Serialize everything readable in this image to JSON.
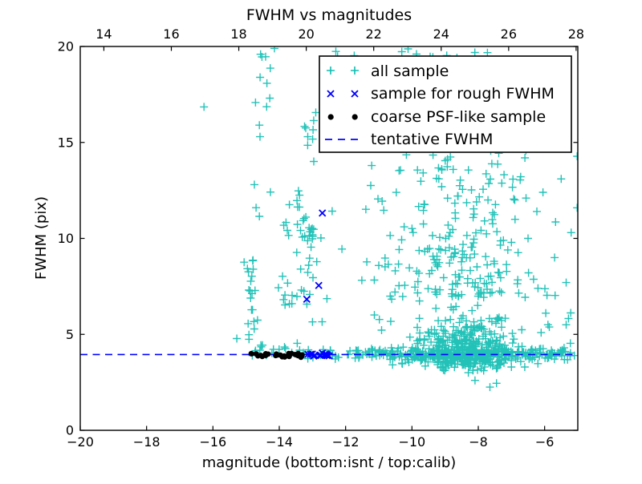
{
  "chart_data": {
    "type": "scatter",
    "title": "FWHM vs magnitudes",
    "xlabel": "magnitude (bottom:isnt / top:calib)",
    "ylabel": "FWHM (pix)",
    "xlim": [
      -20,
      -5
    ],
    "xlim_top": [
      13.3,
      28.05
    ],
    "ylim": [
      0,
      20
    ],
    "xticks_bottom": [
      -20,
      -18,
      -16,
      -14,
      -12,
      -10,
      -8,
      -6
    ],
    "xticks_top": [
      14,
      16,
      18,
      20,
      22,
      24,
      26,
      28
    ],
    "yticks": [
      0,
      5,
      10,
      15,
      20
    ],
    "grid": false,
    "legend_position": "upper right",
    "tentative_fwhm": 3.95,
    "colors": {
      "all_sample": "#0fbdb2",
      "rough_fwhm": "#0000ff",
      "coarse_psf": "#000000",
      "tentative_line": "#0000ff",
      "axis": "#000000"
    },
    "series": [
      {
        "name": "all sample",
        "marker": "plus",
        "color": "#0fbdb2",
        "clusters": [
          {
            "n": 150,
            "x": [
              "u",
              -12.4,
              -5.05
            ],
            "y": [
              "g",
              3.98,
              0.16
            ]
          },
          {
            "n": 90,
            "x": [
              "g",
              -8.6,
              1.1
            ],
            "y": [
              "g",
              3.9,
              0.22
            ]
          },
          {
            "n": 12,
            "x": [
              "u",
              -13.2,
              -12.4
            ],
            "y": [
              "g",
              4.05,
              0.12
            ]
          },
          {
            "n": 18,
            "x": [
              "u",
              -15.05,
              -13.2
            ],
            "y": [
              "g",
              4.15,
              0.18
            ]
          },
          {
            "n": 380,
            "x": [
              "g",
              -8.45,
              0.8
            ],
            "y": [
              "h",
              3.45,
              1.15
            ]
          },
          {
            "n": 30,
            "x": [
              "g",
              -8.4,
              0.9
            ],
            "y": [
              "u",
              3.1,
              3.5
            ]
          },
          {
            "n": 120,
            "x": [
              "g",
              -8.55,
              1.05
            ],
            "y": [
              "u",
              6.8,
              10.2
            ]
          },
          {
            "n": 85,
            "x": [
              "g",
              -8.6,
              1.25
            ],
            "y": [
              "u",
              10.2,
              14.4
            ]
          },
          {
            "n": 26,
            "x": [
              "g",
              -8.7,
              1.4
            ],
            "y": [
              "u",
              14.4,
              17.8
            ]
          },
          {
            "n": 12,
            "x": [
              "u",
              -12.7,
              -7.7
            ],
            "y": [
              "u",
              19.4,
              19.95
            ]
          },
          {
            "n": 8,
            "x": [
              "g",
              -14.82,
              0.08
            ],
            "y": [
              "u",
              4.3,
              6.4
            ]
          },
          {
            "n": 10,
            "x": [
              "g",
              -14.85,
              0.07
            ],
            "y": [
              "u",
              6.8,
              9.0
            ]
          },
          {
            "n": 9,
            "x": [
              "g",
              -14.45,
              0.15
            ],
            "y": [
              "u",
              16.6,
              19.9
            ]
          },
          {
            "n": 48,
            "x": [
              "g",
              -13.35,
              0.4
            ],
            "y": [
              "u",
              5.2,
              12.6
            ]
          },
          {
            "n": 8,
            "x": [
              "g",
              -13.05,
              0.07
            ],
            "y": [
              "g",
              10.3,
              0.22
            ]
          },
          {
            "n": 7,
            "x": [
              "g",
              -13.1,
              0.15
            ],
            "y": [
              "u",
              13.6,
              16.6
            ]
          },
          {
            "n": 12,
            "x": [
              "u",
              -11.6,
              -10.2
            ],
            "y": [
              "u",
              5.0,
              9.0
            ]
          },
          {
            "n": 10,
            "x": [
              "u",
              -6.4,
              -5.1
            ],
            "y": [
              "u",
              4.5,
              8.0
            ]
          }
        ],
        "points": [
          [
            -16.27,
            16.85
          ],
          [
            -15.28,
            4.78
          ],
          [
            -15.06,
            8.76
          ],
          [
            -14.93,
            8.26
          ],
          [
            -14.75,
            12.8
          ],
          [
            -14.7,
            11.6
          ],
          [
            -14.6,
            11.15
          ],
          [
            -14.6,
            15.9
          ],
          [
            -14.58,
            15.3
          ],
          [
            -14.27,
            18.87
          ],
          [
            -13.14,
            15.3
          ],
          [
            -12.9,
            16.56
          ],
          [
            -8.1,
            2.6
          ],
          [
            -7.65,
            2.25
          ],
          [
            -7.45,
            2.45
          ],
          [
            -9.05,
            3.15
          ],
          [
            -8.3,
            3.0
          ],
          [
            -9.6,
            3.35
          ],
          [
            -10.3,
            3.5
          ],
          [
            -7.0,
            3.3
          ],
          [
            -5.5,
            13.1
          ],
          [
            -5.2,
            10.3
          ],
          [
            -5.7,
            9.0
          ],
          [
            -5.35,
            7.7
          ],
          [
            -6.2,
            7.4
          ],
          [
            -5.35,
            5.5
          ],
          [
            -5.9,
            5.5
          ],
          [
            -6.05,
            12.4
          ],
          [
            -6.9,
            12.0
          ],
          [
            -6.5,
            10.0
          ]
        ]
      },
      {
        "name": "sample for rough FWHM",
        "marker": "x",
        "color": "#0000ff",
        "clusters": [
          {
            "n": 15,
            "x": [
              "u",
              -13.15,
              -12.42
            ],
            "y": [
              "g",
              3.95,
              0.05
            ]
          }
        ],
        "points": [
          [
            -12.7,
            11.32
          ],
          [
            -12.81,
            7.55
          ],
          [
            -13.17,
            6.83
          ]
        ]
      },
      {
        "name": "coarse PSF-like sample",
        "marker": "dot",
        "color": "#000000",
        "clusters": [
          {
            "n": 30,
            "x": [
              "u",
              -14.86,
              -13.12
            ],
            "y": [
              "g",
              3.93,
              0.06
            ]
          }
        ],
        "points": []
      },
      {
        "name": "tentative FWHM",
        "marker": "dashed-line",
        "color": "#0000ff",
        "y": 3.95
      }
    ]
  }
}
